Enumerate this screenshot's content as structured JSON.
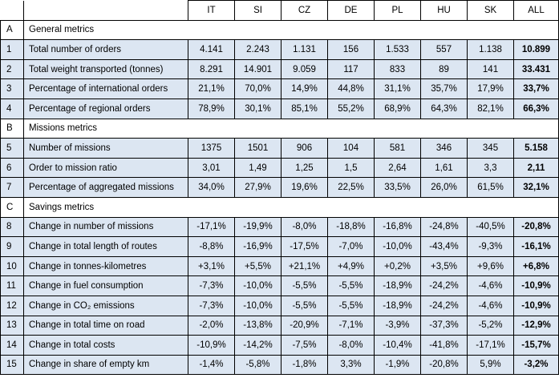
{
  "columns": [
    "IT",
    "SI",
    "CZ",
    "DE",
    "PL",
    "HU",
    "SK",
    "ALL"
  ],
  "sections": [
    {
      "id": "A",
      "title": "General metrics",
      "rows": [
        {
          "n": "1",
          "label": "Total number of orders",
          "values": [
            "4.141",
            "2.243",
            "1.131",
            "156",
            "1.533",
            "557",
            "1.138",
            "10.899"
          ]
        },
        {
          "n": "2",
          "label": "Total weight transported (tonnes)",
          "values": [
            "8.291",
            "14.901",
            "9.059",
            "117",
            "833",
            "89",
            "141",
            "33.431"
          ]
        },
        {
          "n": "3",
          "label": "Percentage of international orders",
          "values": [
            "21,1%",
            "70,0%",
            "14,9%",
            "44,8%",
            "31,1%",
            "35,7%",
            "17,9%",
            "33,7%"
          ]
        },
        {
          "n": "4",
          "label": "Percentage of regional orders",
          "values": [
            "78,9%",
            "30,1%",
            "85,1%",
            "55,2%",
            "68,9%",
            "64,3%",
            "82,1%",
            "66,3%"
          ]
        }
      ]
    },
    {
      "id": "B",
      "title": "Missions metrics",
      "rows": [
        {
          "n": "5",
          "label": "Number of missions",
          "values": [
            "1375",
            "1501",
            "906",
            "104",
            "581",
            "346",
            "345",
            "5.158"
          ]
        },
        {
          "n": "6",
          "label": "Order to mission ratio",
          "values": [
            "3,01",
            "1,49",
            "1,25",
            "1,5",
            "2,64",
            "1,61",
            "3,3",
            "2,11"
          ]
        },
        {
          "n": "7",
          "label": "Percentage of aggregated missions",
          "values": [
            "34,0%",
            "27,9%",
            "19,6%",
            "22,5%",
            "33,5%",
            "26,0%",
            "61,5%",
            "32,1%"
          ]
        }
      ]
    },
    {
      "id": "C",
      "title": "Savings metrics",
      "rows": [
        {
          "n": "8",
          "label": "Change in number of missions",
          "values": [
            "-17,1%",
            "-19,9%",
            "-8,0%",
            "-18,8%",
            "-16,8%",
            "-24,8%",
            "-40,5%",
            "-20,8%"
          ]
        },
        {
          "n": "9",
          "label": "Change in total length of routes",
          "values": [
            "-8,8%",
            "-16,9%",
            "-17,5%",
            "-7,0%",
            "-10,0%",
            "-43,4%",
            "-9,3%",
            "-16,1%"
          ]
        },
        {
          "n": "10",
          "label": "Change in tonnes-kilometres",
          "values": [
            "+3,1%",
            "+5,5%",
            "+21,1%",
            "+4,9%",
            "+0,2%",
            "+3,5%",
            "+9,6%",
            "+6,8%"
          ]
        },
        {
          "n": "11",
          "label": "Change in fuel consumption",
          "values": [
            "-7,3%",
            "-10,0%",
            "-5,5%",
            "-5,5%",
            "-18,9%",
            "-24,2%",
            "-4,6%",
            "-10,9%"
          ]
        },
        {
          "n": "12",
          "label": "Change in CO₂ emissions",
          "values": [
            "-7,3%",
            "-10,0%",
            "-5,5%",
            "-5,5%",
            "-18,9%",
            "-24,2%",
            "-4,6%",
            "-10,9%"
          ]
        },
        {
          "n": "13",
          "label": "Change in total time on road",
          "values": [
            "-2,0%",
            "-13,8%",
            "-20,9%",
            "-7,1%",
            "-3,9%",
            "-37,3%",
            "-5,2%",
            "-12,9%"
          ]
        },
        {
          "n": "14",
          "label": "Change in total costs",
          "values": [
            "-10,9%",
            "-14,2%",
            "-7,5%",
            "-8,0%",
            "-10,4%",
            "-41,8%",
            "-17,1%",
            "-15,7%"
          ]
        },
        {
          "n": "15",
          "label": "Change in share of empty km",
          "values": [
            "-1,4%",
            "-5,8%",
            "-1,8%",
            "3,3%",
            "-1,9%",
            "-20,8%",
            "5,9%",
            "-3,2%"
          ]
        }
      ]
    }
  ]
}
